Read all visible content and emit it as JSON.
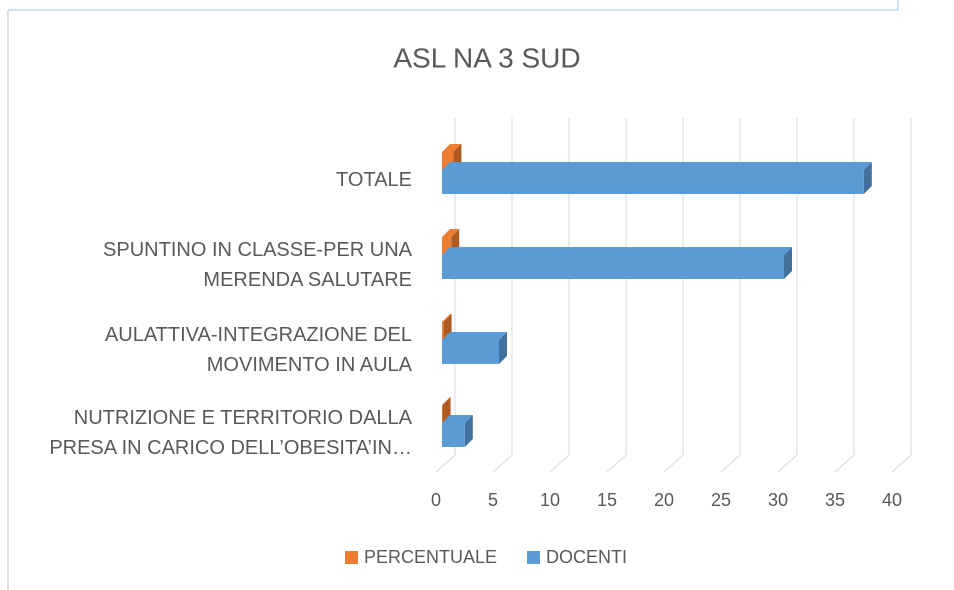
{
  "chart_data": {
    "type": "bar3d_horizontal",
    "title": "ASL NA 3 SUD",
    "categories": [
      "TOTALE",
      "SPUNTINO IN CLASSE-PER UNA MERENDA SALUTARE",
      "AULATTIVA-INTEGRAZIONE DEL MOVIMENTO IN AULA",
      "NUTRIZIONE E TERRITORIO DALLA PRESA IN CARICO DELL’OBESITA’IN…"
    ],
    "series": [
      {
        "name": "PERCENTUALE",
        "color": "#ed7d31",
        "side_color": "#ae5a21",
        "values": [
          1,
          0.81,
          0.14,
          0.05
        ]
      },
      {
        "name": "DOCENTI",
        "color": "#5b9bd5",
        "side_color": "#41719c",
        "values": [
          37,
          30,
          5,
          2
        ]
      }
    ],
    "xlim": [
      0,
      40
    ],
    "xticks": [
      0,
      5,
      10,
      15,
      20,
      25,
      30,
      35,
      40
    ],
    "grid": true,
    "legend": "bottom"
  }
}
